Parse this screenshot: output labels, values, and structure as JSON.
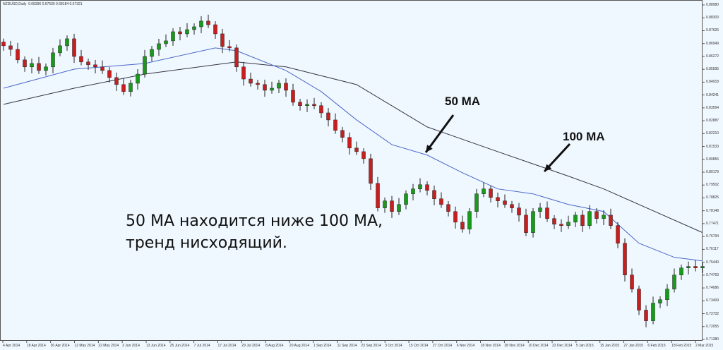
{
  "header": {
    "symbol": "NZDUSD,Daily",
    "ohlc": "0.68396 0.67500 0.68184 0.67321"
  },
  "annotations": {
    "ma50_label": "50 MA",
    "ma100_label": "100 MA",
    "note_line1": "50 MA находится ниже 100 MA,",
    "note_line2": "тренд нисходящий."
  },
  "chart_data": {
    "type": "candlestick",
    "title": "",
    "colors": {
      "up": "#1a9a1a",
      "down": "#c81e1e",
      "ma50": "#4a66c8",
      "ma100": "#333344",
      "background": "#f0f8ff"
    },
    "ylim": [
      0.7138,
      0.8898
    ],
    "y_ticks": [
      "0.88980",
      "0.88303",
      "0.87626",
      "0.86949",
      "0.86272",
      "0.85595",
      "0.84918",
      "0.84241",
      "0.83564",
      "0.82887",
      "0.82210",
      "0.81533",
      "0.80856",
      "0.80179",
      "0.79502",
      "0.78825",
      "0.78148",
      "0.77471",
      "0.76794",
      "0.76117",
      "0.75440",
      "0.74763",
      "0.74086",
      "0.73409",
      "0.72732",
      "0.72055",
      "0.71380"
    ],
    "x_ticks": [
      "4 Apr 2014",
      "18 Apr 2014",
      "30 Apr 2014",
      "12 May 2014",
      "22 May 2014",
      "3 Jun 2014",
      "13 Jun 2014",
      "25 Jun 2014",
      "7 Jul 2014",
      "17 Jul 2014",
      "29 Jul 2014",
      "8 Aug 2014",
      "20 Aug 2014",
      "1 Sep 2014",
      "11 Sep 2014",
      "23 Sep 2014",
      "3 Oct 2014",
      "15 Oct 2014",
      "27 Oct 2014",
      "6 Nov 2014",
      "18 Nov 2014",
      "28 Nov 2014",
      "10 Dec 2014",
      "22 Dec 2014",
      "5 Jan 2015",
      "15 Jan 2015",
      "27 Jan 2015",
      "6 Feb 2015",
      "18 Feb 2015",
      "2 Mar 2015"
    ],
    "closes": [
      0.8683,
      0.8664,
      0.8609,
      0.8572,
      0.859,
      0.8553,
      0.8572,
      0.8646,
      0.8683,
      0.872,
      0.8627,
      0.8598,
      0.8583,
      0.8572,
      0.8553,
      0.8516,
      0.8479,
      0.8442,
      0.8486,
      0.8534,
      0.8627,
      0.8664,
      0.8694,
      0.8709,
      0.8757,
      0.8746,
      0.8768,
      0.8783,
      0.8813,
      0.8794,
      0.8746,
      0.8679,
      0.8672,
      0.8572,
      0.8508,
      0.8486,
      0.8479,
      0.8449,
      0.846,
      0.8486,
      0.8449,
      0.8386,
      0.8368,
      0.8375,
      0.8368,
      0.833,
      0.8293,
      0.8238,
      0.8201,
      0.8145,
      0.8126,
      0.8089,
      0.7959,
      0.783,
      0.7867,
      0.7811,
      0.7848,
      0.7904,
      0.793,
      0.7952,
      0.7922,
      0.7878,
      0.7848,
      0.7811,
      0.7755,
      0.7718,
      0.7811,
      0.7904,
      0.793,
      0.7885,
      0.7867,
      0.7848,
      0.783,
      0.7792,
      0.77,
      0.7811,
      0.783,
      0.7774,
      0.7744,
      0.7737,
      0.7755,
      0.7792,
      0.7737,
      0.7811,
      0.7774,
      0.7792,
      0.7737,
      0.7644,
      0.7477,
      0.7403,
      0.7292,
      0.7236,
      0.7329,
      0.7347,
      0.7403,
      0.7477,
      0.7514,
      0.7522,
      0.7514,
      0.7522
    ],
    "ma50": [
      [
        0,
        0.846
      ],
      [
        10,
        0.856
      ],
      [
        20,
        0.859
      ],
      [
        30,
        0.8672
      ],
      [
        33,
        0.8657
      ],
      [
        40,
        0.8553
      ],
      [
        45,
        0.8442
      ],
      [
        50,
        0.8293
      ],
      [
        55,
        0.8163
      ],
      [
        60,
        0.8108
      ],
      [
        65,
        0.8015
      ],
      [
        70,
        0.793
      ],
      [
        75,
        0.7904
      ],
      [
        80,
        0.7848
      ],
      [
        85,
        0.7811
      ],
      [
        90,
        0.7644
      ],
      [
        95,
        0.757
      ],
      [
        99,
        0.7551
      ]
    ],
    "ma100": [
      [
        0,
        0.8375
      ],
      [
        10,
        0.846
      ],
      [
        20,
        0.8534
      ],
      [
        33,
        0.8598
      ],
      [
        40,
        0.8572
      ],
      [
        50,
        0.8479
      ],
      [
        60,
        0.8256
      ],
      [
        70,
        0.8126
      ],
      [
        80,
        0.7997
      ],
      [
        85,
        0.793
      ],
      [
        90,
        0.7848
      ],
      [
        99,
        0.77
      ]
    ]
  }
}
